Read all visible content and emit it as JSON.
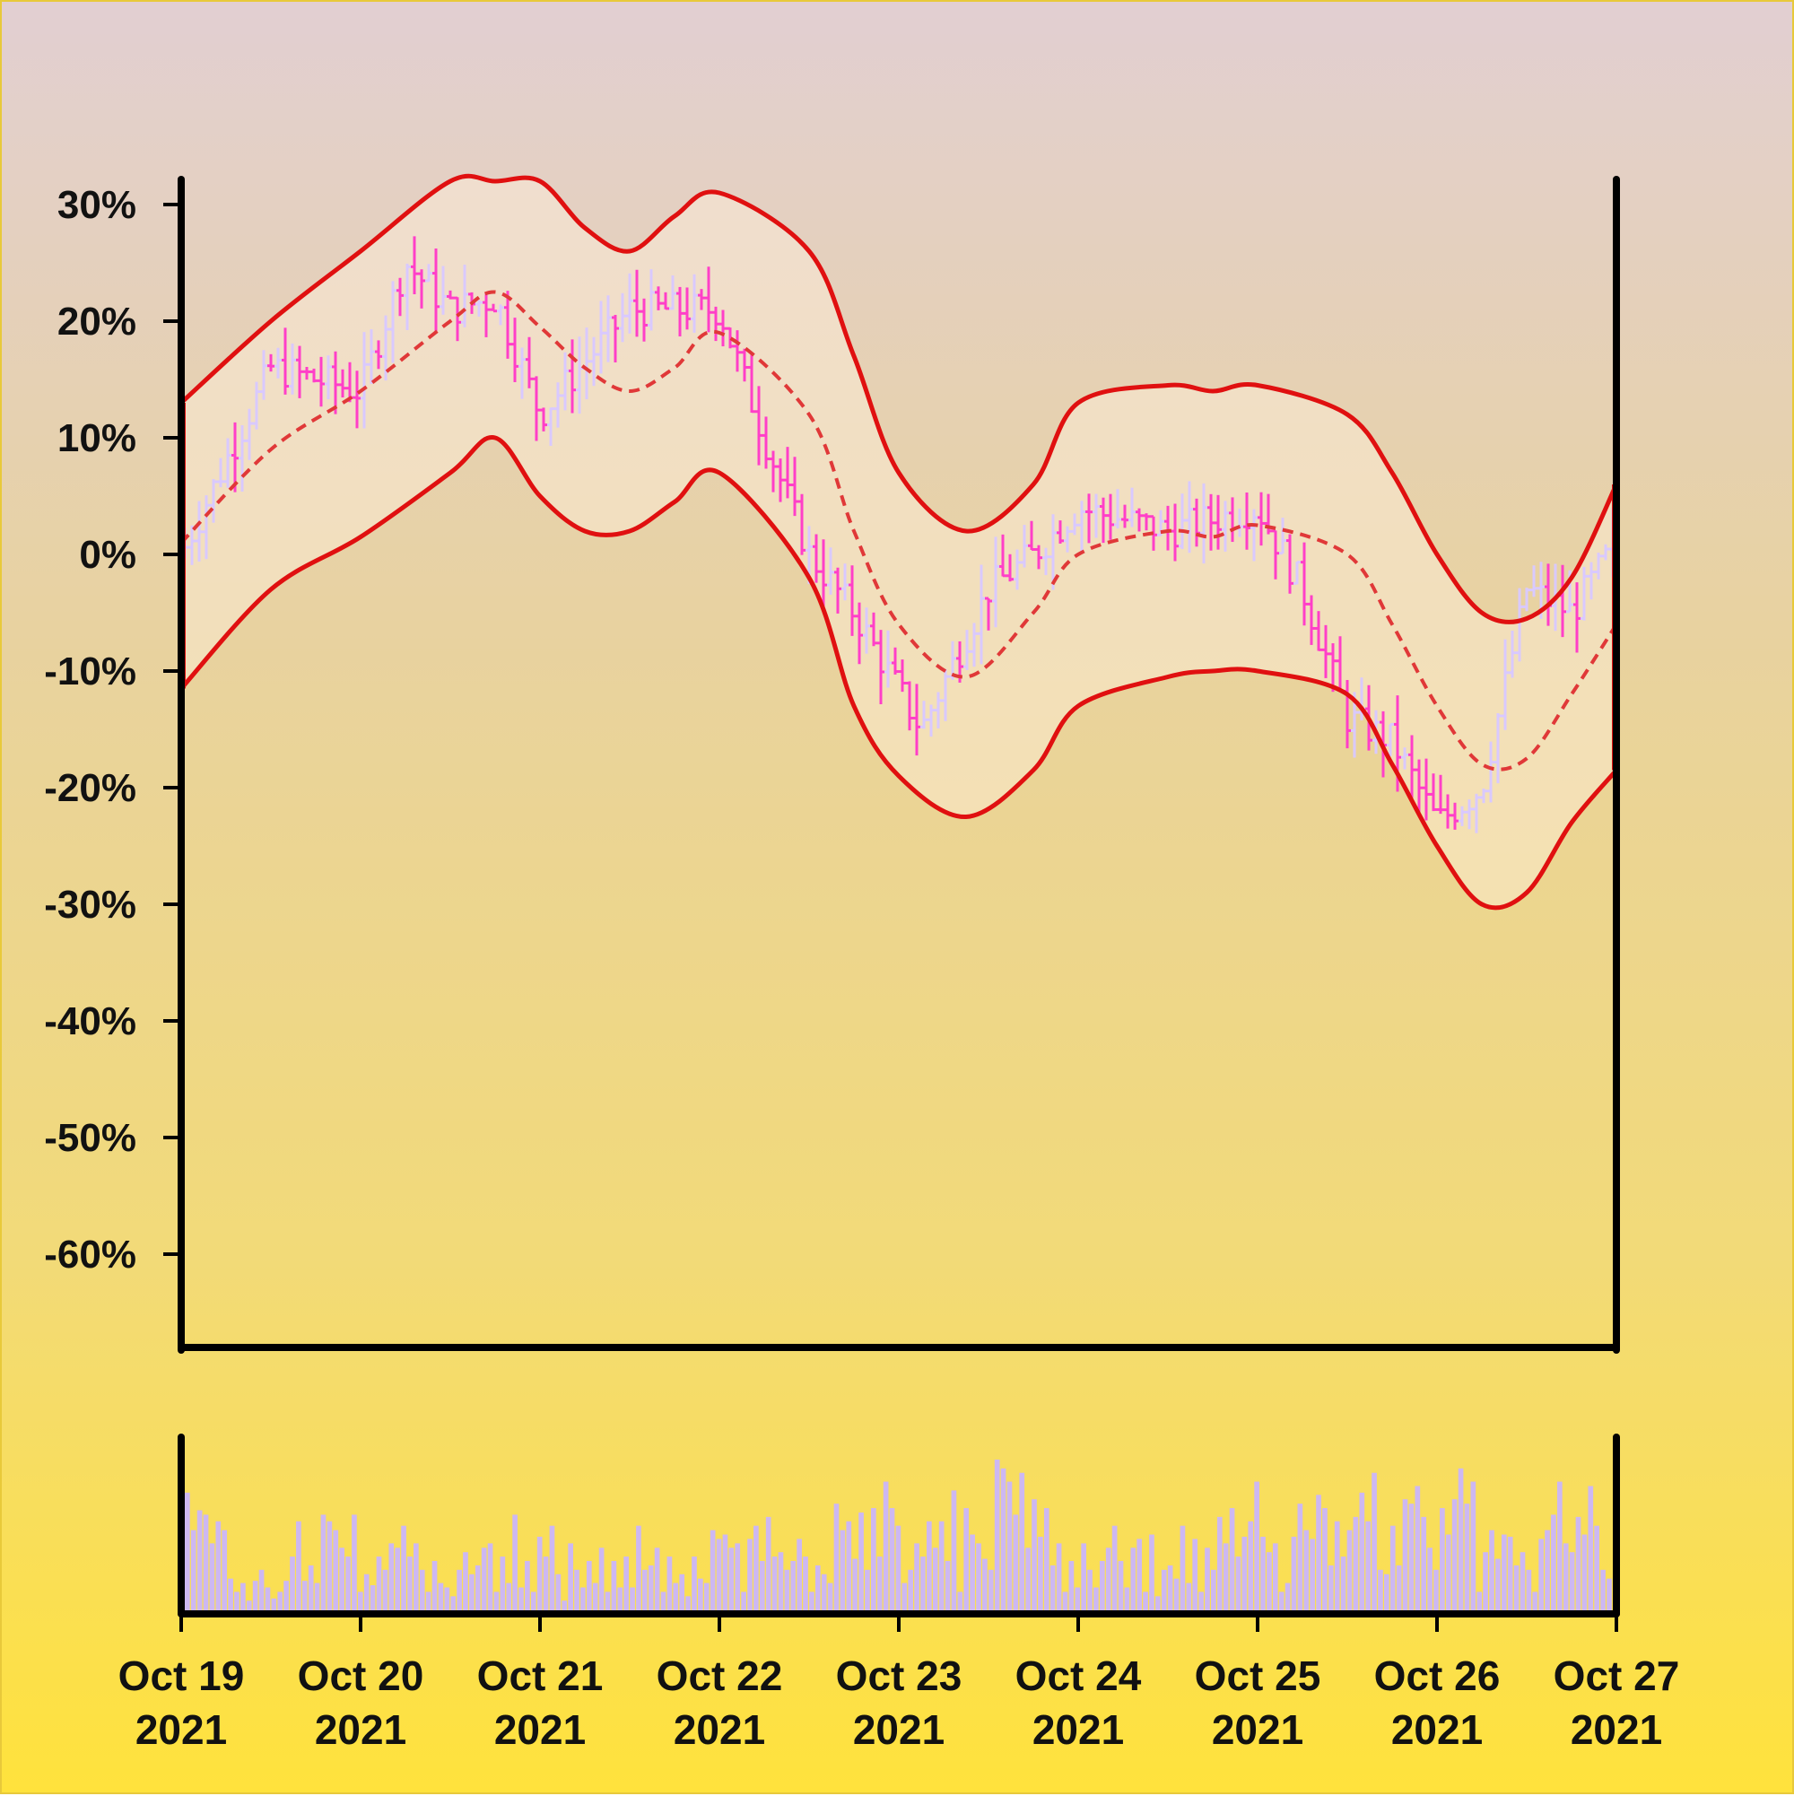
{
  "chart_data": {
    "type": "ohlc_with_bollinger_bands_and_volume",
    "title": "",
    "xlabel": "",
    "ylabel": "",
    "ylim": [
      -68,
      32
    ],
    "y_ticks": [
      "30%",
      "20%",
      "10%",
      "0%",
      "-10%",
      "-20%",
      "-30%",
      "-40%",
      "-50%",
      "-60%"
    ],
    "y_tick_values": [
      30,
      20,
      10,
      0,
      -10,
      -20,
      -30,
      -40,
      -50,
      -60
    ],
    "x_ticks": [
      {
        "line1": "Oct 19",
        "line2": "2021",
        "date": "2021-10-19"
      },
      {
        "line1": "Oct 20",
        "line2": "2021",
        "date": "2021-10-20"
      },
      {
        "line1": "Oct 21",
        "line2": "2021",
        "date": "2021-10-21"
      },
      {
        "line1": "Oct 22",
        "line2": "2021",
        "date": "2021-10-22"
      },
      {
        "line1": "Oct 23",
        "line2": "2021",
        "date": "2021-10-23"
      },
      {
        "line1": "Oct 24",
        "line2": "2021",
        "date": "2021-10-24"
      },
      {
        "line1": "Oct 25",
        "line2": "2021",
        "date": "2021-10-25"
      },
      {
        "line1": "Oct 26",
        "line2": "2021",
        "date": "2021-10-26"
      },
      {
        "line1": "Oct 27",
        "line2": "2021",
        "date": "2021-10-27"
      }
    ],
    "x_range": [
      "2021-10-19",
      "2021-10-27"
    ],
    "grid": false,
    "legend": "none",
    "series": [
      {
        "role": "price_close",
        "x": [
          "10-19 00:00",
          "10-19 12:00",
          "10-20 00:00",
          "10-20 06:00",
          "10-20 12:00",
          "10-20 18:00",
          "10-21 00:00",
          "10-21 12:00",
          "10-22 00:00",
          "10-22 06:00",
          "10-22 12:00",
          "10-22 18:00",
          "10-23 03:00",
          "10-23 12:00",
          "10-23 18:00",
          "10-24 00:00",
          "10-24 12:00",
          "10-25 00:00",
          "10-25 06:00",
          "10-25 12:00",
          "10-25 18:00",
          "10-26 00:00",
          "10-26 06:00",
          "10-26 12:00",
          "10-26 18:00",
          "10-27 00:00"
        ],
        "values": [
          0,
          16,
          14,
          25,
          21,
          22,
          12,
          21,
          21,
          10,
          0,
          -5,
          -15,
          -3,
          0,
          4,
          2,
          4,
          -3,
          -14,
          -16,
          -23,
          -20,
          -3,
          -5,
          1
        ]
      },
      {
        "role": "upper_band",
        "x": [
          "10-19 00:00",
          "10-19 12:00",
          "10-20 00:00",
          "10-20 12:00",
          "10-20 18:00",
          "10-21 00:00",
          "10-21 06:00",
          "10-21 12:00",
          "10-21 18:00",
          "10-22 00:00",
          "10-22 12:00",
          "10-22 18:00",
          "10-23 00:00",
          "10-23 09:00",
          "10-23 18:00",
          "10-24 00:00",
          "10-24 12:00",
          "10-24 18:00",
          "10-25 00:00",
          "10-25 12:00",
          "10-25 18:00",
          "10-26 00:00",
          "10-26 06:00",
          "10-26 12:00",
          "10-26 18:00",
          "10-27 00:00"
        ],
        "values": [
          13,
          20,
          26,
          32,
          32,
          32,
          28,
          26,
          29,
          31,
          26,
          17,
          7,
          2,
          6,
          13,
          14.5,
          14,
          14.5,
          12,
          7,
          0,
          -5,
          -5.5,
          -2,
          6
        ]
      },
      {
        "role": "moving_average",
        "x": [
          "10-19 00:00",
          "10-19 12:00",
          "10-20 00:00",
          "10-20 12:00",
          "10-20 18:00",
          "10-21 00:00",
          "10-21 06:00",
          "10-21 12:00",
          "10-21 18:00",
          "10-22 00:00",
          "10-22 12:00",
          "10-22 18:00",
          "10-23 00:00",
          "10-23 09:00",
          "10-23 18:00",
          "10-24 00:00",
          "10-24 12:00",
          "10-24 18:00",
          "10-25 00:00",
          "10-25 12:00",
          "10-25 18:00",
          "10-26 00:00",
          "10-26 06:00",
          "10-26 12:00",
          "10-26 18:00",
          "10-27 00:00"
        ],
        "values": [
          1,
          9,
          14,
          20,
          22.5,
          19.5,
          16,
          14,
          16,
          19,
          12,
          2,
          -6,
          -10.5,
          -5,
          0,
          2,
          1.5,
          2.5,
          0,
          -6,
          -13,
          -18,
          -17.5,
          -12,
          -6
        ]
      },
      {
        "role": "lower_band",
        "x": [
          "10-19 00:00",
          "10-19 12:00",
          "10-20 00:00",
          "10-20 12:00",
          "10-20 18:00",
          "10-21 00:00",
          "10-21 06:00",
          "10-21 12:00",
          "10-21 18:00",
          "10-22 00:00",
          "10-22 12:00",
          "10-22 18:00",
          "10-23 00:00",
          "10-23 09:00",
          "10-23 18:00",
          "10-24 00:00",
          "10-24 12:00",
          "10-24 18:00",
          "10-25 00:00",
          "10-25 12:00",
          "10-25 18:00",
          "10-26 00:00",
          "10-26 06:00",
          "10-26 12:00",
          "10-26 18:00",
          "10-27 00:00"
        ],
        "values": [
          -11.5,
          -3,
          1.5,
          7,
          10,
          5,
          2,
          2,
          4.5,
          7,
          -2,
          -13,
          -19,
          -22.5,
          -18.5,
          -13,
          -10.5,
          -10,
          -10,
          -12,
          -18,
          -25,
          -30,
          -29,
          -23,
          -18.5
        ]
      }
    ],
    "volume": {
      "x_range": [
        "2021-10-19",
        "2021-10-27"
      ],
      "values": [
        55,
        38,
        47,
        45,
        32,
        42,
        38,
        16,
        10,
        14,
        6,
        15,
        20,
        12,
        7,
        10,
        15,
        26,
        42,
        15,
        22,
        14,
        45,
        42,
        38,
        30,
        26,
        45,
        10,
        18,
        13,
        26,
        20,
        32,
        30,
        40,
        26,
        32,
        20,
        10,
        24,
        14,
        12,
        8,
        20,
        28,
        18,
        22,
        30,
        32,
        10,
        26,
        14,
        45,
        12,
        24,
        10,
        35,
        26,
        40,
        18,
        6,
        32,
        20,
        12,
        24,
        14,
        30,
        10,
        24,
        12,
        26,
        12,
        40,
        20,
        22,
        30,
        10,
        26,
        14,
        18,
        8,
        26,
        16,
        14,
        38,
        34,
        36,
        30,
        32,
        10,
        34,
        40,
        24,
        44,
        26,
        28,
        20,
        24,
        34,
        26,
        10,
        22,
        18,
        14,
        50,
        38,
        42,
        25,
        46,
        20,
        48,
        26,
        60,
        48,
        40,
        14,
        20,
        32,
        26,
        42,
        30,
        42,
        24,
        56,
        10,
        48,
        36,
        32,
        25,
        20,
        70,
        66,
        60,
        45,
        64,
        30,
        52,
        35,
        48,
        22,
        32,
        10,
        24,
        12,
        32,
        20,
        12,
        24,
        30,
        40,
        24,
        12,
        30,
        34,
        10,
        36,
        8,
        20,
        22,
        16,
        40,
        14,
        34,
        10,
        30,
        20,
        44,
        32,
        48,
        26,
        35,
        42,
        60,
        35,
        28,
        32,
        10,
        14,
        35,
        50,
        38,
        34,
        54,
        48,
        22,
        42,
        26,
        38,
        44,
        55,
        42,
        64,
        20,
        18,
        40,
        22,
        52,
        50,
        58,
        44,
        30,
        20,
        48,
        36,
        52,
        66,
        50,
        60,
        10,
        28,
        38,
        25,
        36,
        35,
        22,
        28,
        20,
        10,
        34,
        38,
        45,
        60,
        32,
        28,
        44,
        36,
        58,
        40,
        20,
        16
      ],
      "max": 70
    }
  }
}
